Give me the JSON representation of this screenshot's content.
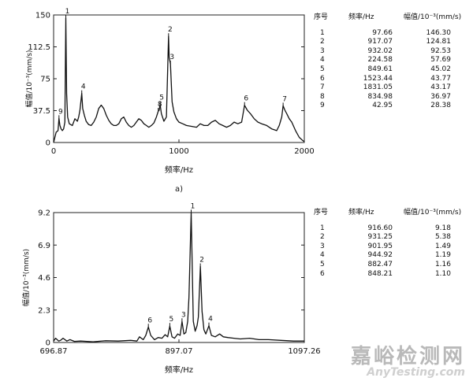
{
  "chart_data": [
    {
      "type": "line",
      "xlabel": "频率/Hz",
      "ylabel": "幅值/10⁻³(mm/s)",
      "xlim": [
        0,
        2000
      ],
      "ylim": [
        0,
        150
      ],
      "x_ticks": [
        "0",
        "1000",
        "2000"
      ],
      "y_ticks": [
        "0",
        "37.5",
        "75",
        "112.5",
        "150"
      ],
      "caption": "a)",
      "series": [
        {
          "x": [
            0,
            10,
            20,
            35,
            42.95,
            50,
            60,
            70,
            80,
            90,
            97.66,
            104,
            112,
            125,
            150,
            170,
            190,
            200,
            210,
            224.58,
            232,
            245,
            260,
            280,
            300,
            320,
            340,
            360,
            380,
            400,
            420,
            440,
            460,
            480,
            500,
            520,
            540,
            560,
            580,
            600,
            620,
            640,
            660,
            680,
            700,
            720,
            740,
            760,
            780,
            800,
            820,
            834.98,
            842,
            849.61,
            860,
            880,
            900,
            917.07,
            922,
            932.02,
            945,
            960,
            980,
            1000,
            1030,
            1060,
            1100,
            1140,
            1170,
            1200,
            1230,
            1260,
            1290,
            1320,
            1350,
            1380,
            1410,
            1440,
            1470,
            1500,
            1523.44,
            1545,
            1570,
            1600,
            1630,
            1660,
            1700,
            1740,
            1780,
            1800,
            1820,
            1831.05,
            1845,
            1860,
            1880,
            1900,
            1930,
            1960,
            1990,
            2000
          ],
          "y": [
            0,
            6,
            12,
            14,
            28.4,
            20,
            16,
            14,
            16,
            24,
            146.3,
            58,
            30,
            22,
            20,
            28,
            25,
            30,
            38,
            57.7,
            40,
            32,
            25,
            21,
            20,
            24,
            30,
            40,
            44,
            40,
            32,
            26,
            22,
            20,
            20,
            22,
            28,
            30,
            24,
            20,
            18,
            20,
            24,
            28,
            26,
            22,
            20,
            18,
            20,
            23,
            30,
            36.9,
            38,
            45.0,
            34,
            25,
            30,
            124.8,
            100,
            92.5,
            48,
            36,
            28,
            24,
            22,
            20,
            19,
            18,
            22,
            20,
            20,
            24,
            26,
            22,
            20,
            18,
            20,
            24,
            22,
            24,
            43.8,
            38,
            34,
            28,
            24,
            22,
            20,
            16,
            14,
            20,
            30,
            43.2,
            38,
            34,
            28,
            24,
            14,
            6,
            2,
            1
          ]
        }
      ],
      "table": {
        "headers": [
          "序号",
          "频率/Hz",
          "幅值/10⁻³(mm/s)"
        ],
        "rows": [
          [
            "1",
            "97.66",
            "146.30"
          ],
          [
            "2",
            "917.07",
            "124.81"
          ],
          [
            "3",
            "932.02",
            "92.53"
          ],
          [
            "4",
            "224.58",
            "57.69"
          ],
          [
            "5",
            "849.61",
            "45.02"
          ],
          [
            "6",
            "1523.44",
            "43.77"
          ],
          [
            "7",
            "1831.05",
            "43.17"
          ],
          [
            "8",
            "834.98",
            "36.97"
          ],
          [
            "9",
            "42.95",
            "28.38"
          ]
        ]
      }
    },
    {
      "type": "line",
      "xlabel": "频率/Hz",
      "ylabel": "幅值/10⁻³(mm/s)",
      "xlim": [
        696.87,
        1097.26
      ],
      "ylim": [
        0,
        9.2
      ],
      "x_ticks": [
        "696.87",
        "897.07",
        "1097.26"
      ],
      "y_ticks": [
        "0",
        "2.3",
        "4.6",
        "6.9",
        "9.2"
      ],
      "series": [
        {
          "x": [
            696.87,
            700,
            705,
            708,
            712,
            718,
            723,
            730,
            740,
            760,
            780,
            800,
            820,
            830,
            834,
            840,
            844,
            848.21,
            852,
            858,
            864,
            870,
            875,
            879,
            882.47,
            886,
            890,
            895,
            899,
            901.95,
            905,
            908,
            911,
            913,
            916.6,
            920,
            923,
            926,
            928,
            931.25,
            934,
            937,
            940,
            944.92,
            949,
            955,
            962,
            968,
            975,
            985,
            995,
            1010,
            1025,
            1040,
            1060,
            1080,
            1097.26
          ],
          "y": [
            0.1,
            0.3,
            0.1,
            0.15,
            0.3,
            0.1,
            0.2,
            0.08,
            0.1,
            0.05,
            0.12,
            0.1,
            0.15,
            0.1,
            0.4,
            0.2,
            0.5,
            1.1,
            0.5,
            0.2,
            0.35,
            0.3,
            0.55,
            0.4,
            1.16,
            0.4,
            0.3,
            0.6,
            0.5,
            1.49,
            0.6,
            0.7,
            1.5,
            3.2,
            9.18,
            1.5,
            0.8,
            1.2,
            1.8,
            5.38,
            2.2,
            0.9,
            0.6,
            1.19,
            0.5,
            0.4,
            0.6,
            0.4,
            0.35,
            0.3,
            0.25,
            0.3,
            0.2,
            0.2,
            0.15,
            0.1,
            0.1
          ]
        }
      ],
      "table": {
        "headers": [
          "序号",
          "频率/Hz",
          "幅值/10⁻³(mm/s)"
        ],
        "rows": [
          [
            "1",
            "916.60",
            "9.18"
          ],
          [
            "2",
            "931.25",
            "5.38"
          ],
          [
            "3",
            "901.95",
            "1.49"
          ],
          [
            "4",
            "944.92",
            "1.19"
          ],
          [
            "5",
            "882.47",
            "1.16"
          ],
          [
            "6",
            "848.21",
            "1.10"
          ]
        ]
      }
    }
  ],
  "watermark": {
    "main": "嘉峪检测网",
    "sub": "AnyTesting.com"
  }
}
